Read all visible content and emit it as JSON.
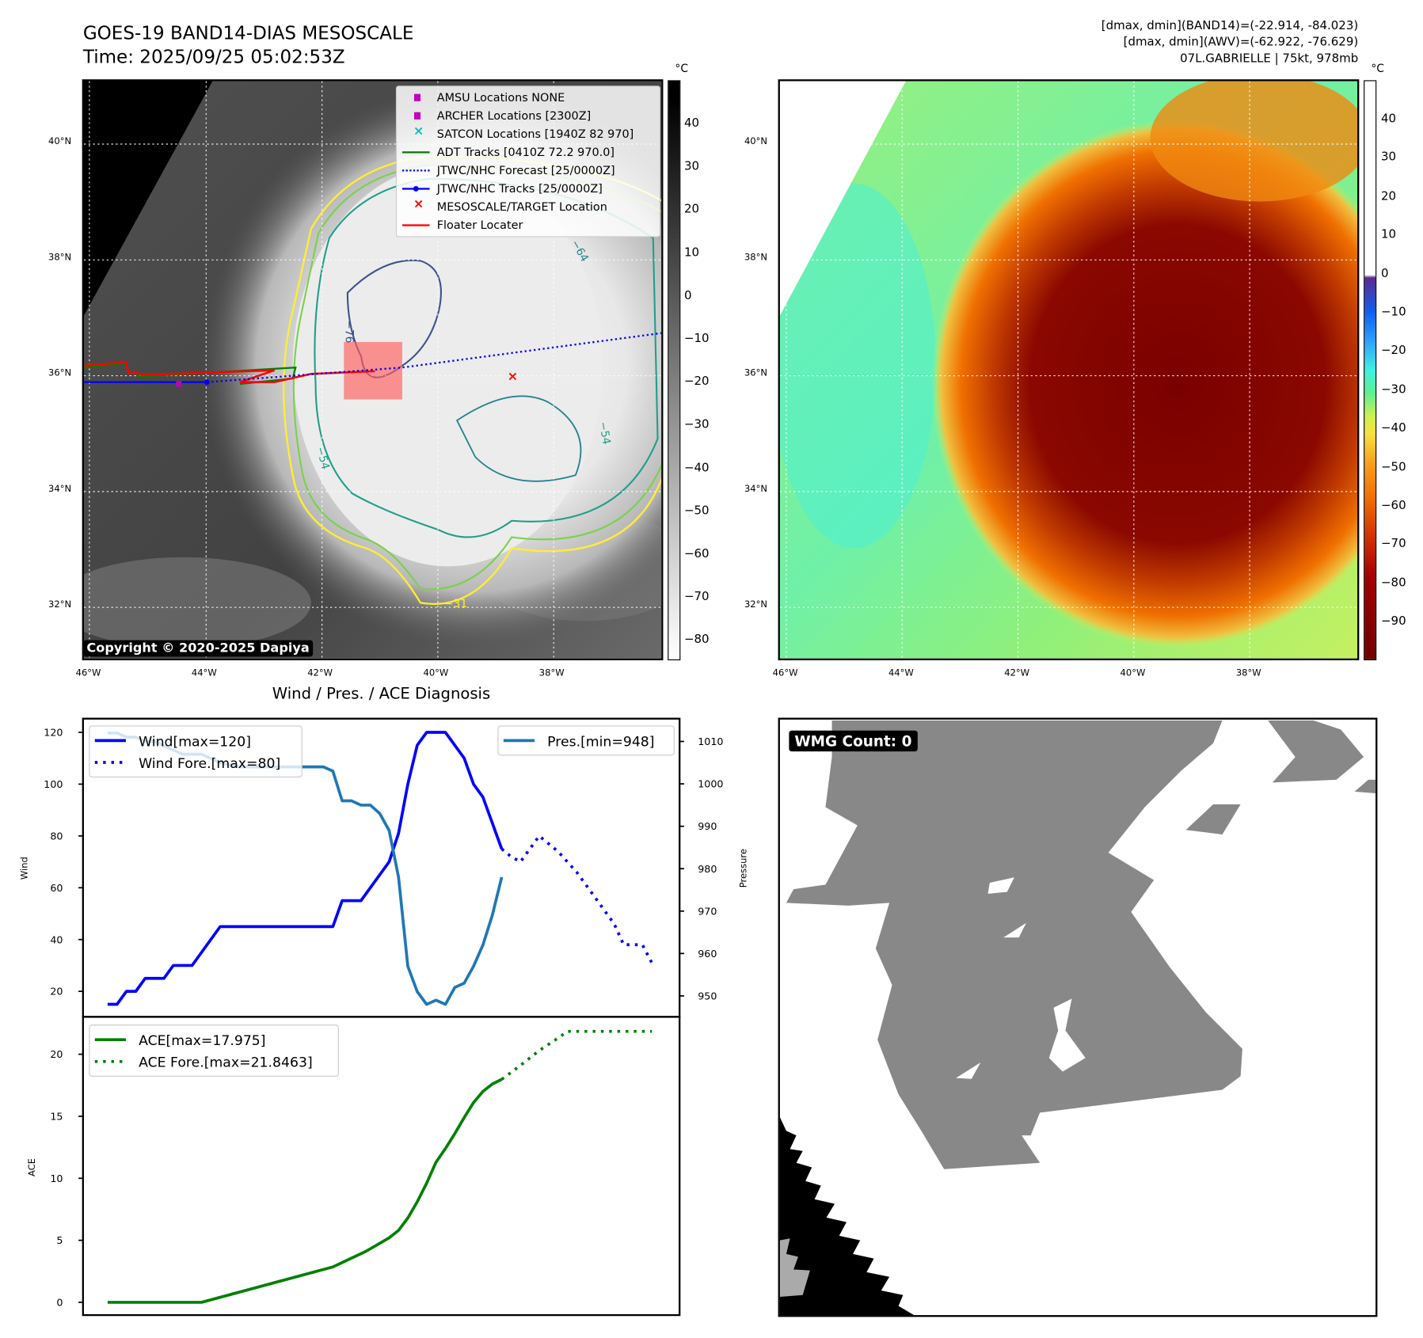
{
  "header": {
    "title": "GOES-19 BAND14-DIAS MESOSCALE",
    "time": "Time: 2025/09/25 05:02:53Z",
    "info_line1": "[dmax, dmin](BAND14)=(-22.914, -84.023)",
    "info_line2": "[dmax, dmin](AWV)=(-62.922, -76.629)",
    "info_line3": "07L.GABRIELLE | 75kt, 978mb"
  },
  "maps": {
    "lat_labels": [
      "40°N",
      "38°N",
      "36°N",
      "34°N",
      "32°N"
    ],
    "lon_labels": [
      "46°W",
      "44°W",
      "42°W",
      "40°W",
      "38°W"
    ],
    "colorbar_unit": "°C",
    "left_colorbar_ticks": [
      "40",
      "30",
      "20",
      "10",
      "0",
      "−10",
      "−20",
      "−30",
      "−40",
      "−50",
      "−60",
      "−70",
      "−80"
    ],
    "right_colorbar_ticks": [
      "40",
      "30",
      "20",
      "10",
      "0",
      "−10",
      "−20",
      "−30",
      "−40",
      "−50",
      "−60",
      "−70",
      "−80",
      "−90"
    ],
    "contour_labels": [
      "−76",
      "−54",
      "−54",
      "−64",
      "−31"
    ],
    "copyright": "Copyright © 2020-2025 Dapiya",
    "legend": [
      {
        "label": "AMSU Locations NONE",
        "color": "#c000c0",
        "symbol": "square"
      },
      {
        "label": "ARCHER Locations [2300Z]",
        "color": "#c000c0",
        "symbol": "square"
      },
      {
        "label": "SATCON Locations [1940Z 82 970]",
        "color": "#00c0c0",
        "symbol": "x"
      },
      {
        "label": "ADT Tracks [0410Z 72.2 970.0]",
        "color": "#008000",
        "symbol": "line"
      },
      {
        "label": "JTWC/NHC Forecast [25/0000Z]",
        "color": "#0000ff",
        "symbol": "dotted"
      },
      {
        "label": "JTWC/NHC Tracks [25/0000Z]",
        "color": "#0000ff",
        "symbol": "line-dot"
      },
      {
        "label": "MESOSCALE/TARGET Location",
        "color": "#ff0000",
        "symbol": "x"
      },
      {
        "label": "Floater Locater",
        "color": "#ff0000",
        "symbol": "line"
      }
    ]
  },
  "wmg": {
    "label": "WMG Count: 0"
  },
  "chart_data": [
    {
      "type": "line",
      "title": "Wind / Pres. / ACE Diagnosis",
      "ylabel": "Wind",
      "ylabel_right": "Pressure",
      "ylim": [
        13,
        125
      ],
      "ylim_right": [
        945,
        1013
      ],
      "yticks": [
        20,
        40,
        60,
        80,
        100,
        120
      ],
      "yticks_right": [
        950,
        960,
        970,
        980,
        990,
        1000,
        1010
      ],
      "x_range": [
        0,
        58
      ],
      "legend_left": "upper-left",
      "legend_right": "upper-right",
      "series": [
        {
          "name": "Wind[max=120]",
          "color": "#0000ff",
          "style": "solid",
          "axis": "left",
          "points": [
            [
              0,
              15
            ],
            [
              1,
              15
            ],
            [
              2,
              20
            ],
            [
              3,
              20
            ],
            [
              4,
              25
            ],
            [
              6,
              25
            ],
            [
              7,
              30
            ],
            [
              9,
              30
            ],
            [
              12,
              45
            ],
            [
              24,
              45
            ],
            [
              25,
              55
            ],
            [
              27,
              55
            ],
            [
              30,
              70
            ],
            [
              31,
              81
            ],
            [
              32,
              100
            ],
            [
              33,
              115
            ],
            [
              34,
              120
            ],
            [
              36,
              120
            ],
            [
              38,
              110
            ],
            [
              39,
              100
            ],
            [
              40,
              95
            ],
            [
              41,
              85
            ],
            [
              42,
              75
            ]
          ]
        },
        {
          "name": "Wind Fore.[max=80]",
          "color": "#0000ff",
          "style": "dotted",
          "axis": "left",
          "points": [
            [
              42,
              75
            ],
            [
              43,
              72
            ],
            [
              44,
              70
            ],
            [
              46,
              80
            ],
            [
              48,
              74
            ],
            [
              50,
              66
            ],
            [
              52,
              56
            ],
            [
              54,
              46
            ],
            [
              55,
              38
            ],
            [
              57,
              38
            ],
            [
              58,
              31
            ]
          ]
        },
        {
          "name": "Pres.[min=948]",
          "color": "#1f77b4",
          "style": "solid",
          "axis": "right",
          "points": [
            [
              0,
              1012
            ],
            [
              1,
              1012
            ],
            [
              2,
              1011
            ],
            [
              3,
              1011
            ],
            [
              4,
              1010
            ],
            [
              5,
              1010
            ],
            [
              8,
              1007
            ],
            [
              10,
              1007
            ],
            [
              12,
              1005
            ],
            [
              14,
              1004
            ],
            [
              23,
              1004
            ],
            [
              24,
              1003
            ],
            [
              25,
              996
            ],
            [
              26,
              996
            ],
            [
              27,
              995
            ],
            [
              28,
              995
            ],
            [
              29,
              993
            ],
            [
              30,
              989
            ],
            [
              31,
              978
            ],
            [
              32,
              957
            ],
            [
              33,
              951
            ],
            [
              34,
              948
            ],
            [
              35,
              949
            ],
            [
              36,
              948
            ],
            [
              37,
              952
            ],
            [
              38,
              953
            ],
            [
              39,
              957
            ],
            [
              40,
              962
            ],
            [
              41,
              969
            ],
            [
              42,
              978
            ]
          ]
        }
      ]
    },
    {
      "type": "line",
      "ylabel": "ACE",
      "ylim": [
        -1,
        23
      ],
      "yticks": [
        0,
        5,
        10,
        15,
        20
      ],
      "x_range": [
        0,
        58
      ],
      "legend": "upper-left",
      "series": [
        {
          "name": "ACE[max=17.975]",
          "color": "#008000",
          "style": "solid",
          "points": [
            [
              0,
              0
            ],
            [
              10,
              0
            ],
            [
              24,
              2.85
            ],
            [
              27.5,
              4.1
            ],
            [
              30,
              5.2
            ],
            [
              31,
              5.8
            ],
            [
              32,
              6.8
            ],
            [
              33,
              8.1
            ],
            [
              34,
              9.6
            ],
            [
              35,
              11.3
            ],
            [
              36,
              12.4
            ],
            [
              37,
              13.6
            ],
            [
              38,
              14.9
            ],
            [
              39,
              16.1
            ],
            [
              40,
              17.0
            ],
            [
              41,
              17.6
            ],
            [
              42,
              17.975
            ]
          ]
        },
        {
          "name": "ACE Fore.[max=21.8463]",
          "color": "#008000",
          "style": "dotted",
          "points": [
            [
              42,
              17.975
            ],
            [
              44,
              19.1
            ],
            [
              46,
              20.3
            ],
            [
              48,
              21.3
            ],
            [
              49,
              21.8463
            ],
            [
              58,
              21.8463
            ]
          ]
        }
      ]
    }
  ]
}
